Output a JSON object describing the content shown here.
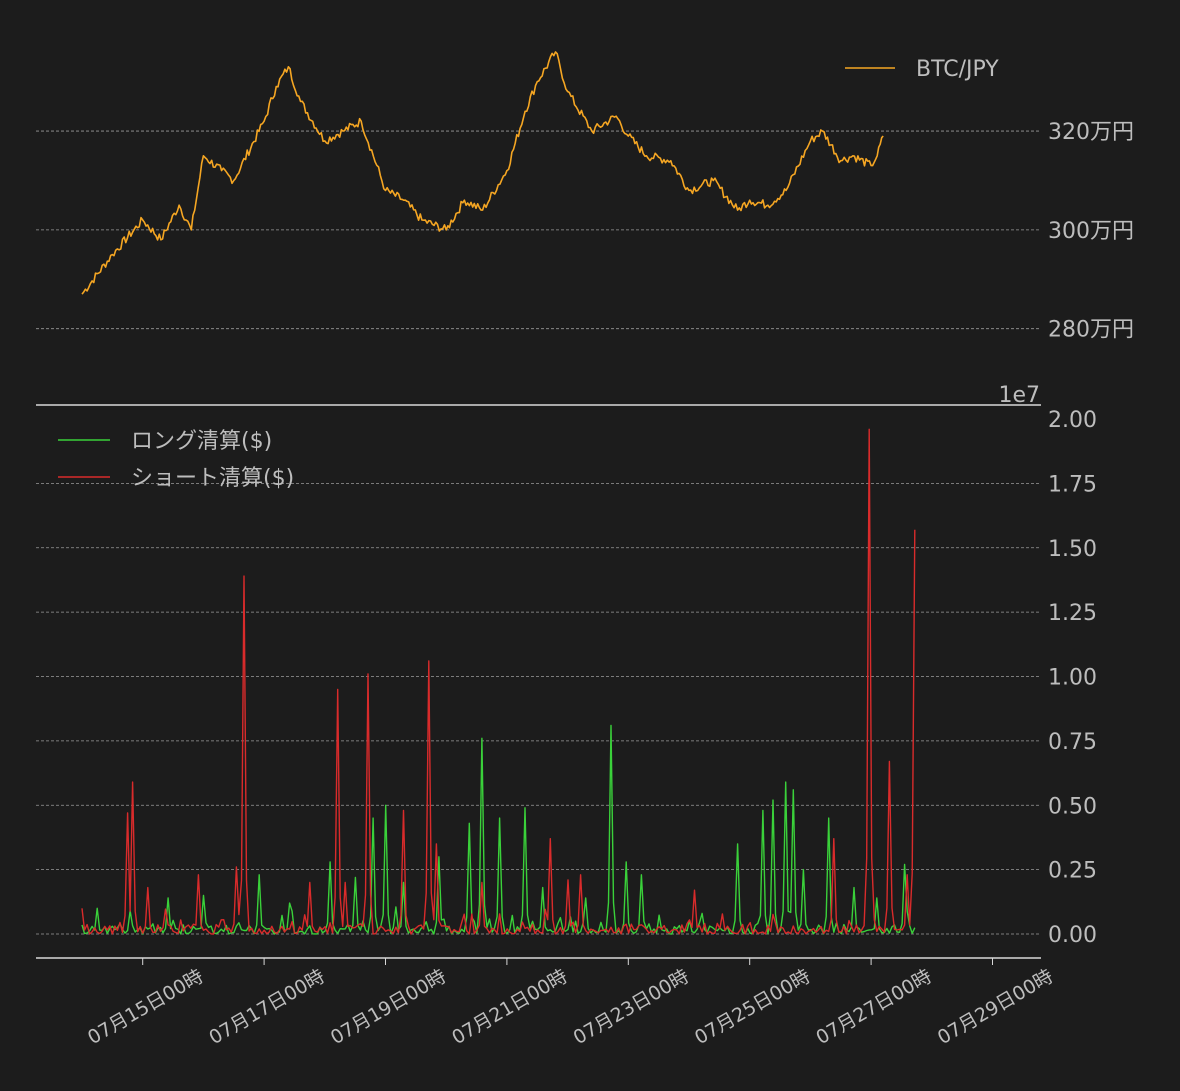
{
  "chart_data": [
    {
      "type": "line",
      "panel": "price",
      "legend_position": "top-right",
      "grid": true,
      "y_tick_labels": [
        "280万円",
        "300万円",
        "320万円"
      ],
      "y_ticks": [
        2800000,
        3000000,
        3200000
      ],
      "ylim": [
        2680000,
        3360000
      ],
      "x_range_days": [
        0,
        14
      ],
      "series": [
        {
          "name": "BTC/JPY",
          "color": "#f5a623",
          "x_days": [
            0.0,
            0.5,
            1.0,
            1.3,
            1.6,
            1.8,
            2.0,
            2.3,
            2.5,
            3.0,
            3.2,
            3.4,
            3.6,
            4.0,
            4.3,
            4.6,
            5.0,
            5.3,
            5.6,
            6.0,
            6.3,
            6.6,
            7.0,
            7.3,
            7.5,
            7.8,
            8.0,
            8.4,
            8.8,
            9.0,
            9.3,
            9.7,
            10.0,
            10.4,
            10.8,
            11.0,
            11.3,
            11.6,
            12.0,
            12.2,
            12.5,
            12.7,
            13.0,
            13.1,
            13.2
          ],
          "values": [
            2870000,
            2950000,
            3020000,
            2980000,
            3050000,
            3000000,
            3150000,
            3120000,
            3100000,
            3220000,
            3290000,
            3330000,
            3260000,
            3180000,
            3200000,
            3220000,
            3080000,
            3060000,
            3020000,
            3000000,
            3060000,
            3040000,
            3120000,
            3240000,
            3300000,
            3360000,
            3280000,
            3200000,
            3230000,
            3190000,
            3150000,
            3140000,
            3080000,
            3100000,
            3040000,
            3060000,
            3050000,
            3080000,
            3180000,
            3200000,
            3140000,
            3150000,
            3130000,
            3150000,
            3190000
          ]
        }
      ]
    },
    {
      "type": "line",
      "panel": "liquidations",
      "legend_position": "top-left",
      "grid": true,
      "offset_text": "1e7",
      "y_tick_labels": [
        "0.00",
        "0.25",
        "0.50",
        "0.75",
        "1.00",
        "1.25",
        "1.50",
        "1.75",
        "2.00"
      ],
      "y_ticks": [
        0,
        0.25,
        0.5,
        0.75,
        1.0,
        1.25,
        1.5,
        1.75,
        2.0
      ],
      "ylim": [
        -0.09,
        2.0
      ],
      "x_tick_labels": [
        "07月15日00時",
        "07月17日00時",
        "07月19日00時",
        "07月21日00時",
        "07月23日00時",
        "07月25日00時",
        "07月27日00時",
        "07月29日00時"
      ],
      "x_range_days": [
        0,
        14
      ],
      "series": [
        {
          "name": "ロング清算($)",
          "color": "#3ad13a",
          "spikes": [
            [
              0.25,
              0.1
            ],
            [
              0.8,
              0.09
            ],
            [
              1.4,
              0.14
            ],
            [
              2.0,
              0.15
            ],
            [
              2.9,
              0.23
            ],
            [
              3.4,
              0.12
            ],
            [
              4.1,
              0.28
            ],
            [
              4.5,
              0.22
            ],
            [
              4.8,
              0.45
            ],
            [
              5.0,
              0.5
            ],
            [
              5.3,
              0.2
            ],
            [
              5.9,
              0.3
            ],
            [
              6.4,
              0.43
            ],
            [
              6.6,
              0.76
            ],
            [
              6.9,
              0.45
            ],
            [
              7.3,
              0.49
            ],
            [
              7.6,
              0.18
            ],
            [
              8.3,
              0.14
            ],
            [
              8.7,
              0.81
            ],
            [
              8.95,
              0.28
            ],
            [
              9.2,
              0.23
            ],
            [
              10.2,
              0.08
            ],
            [
              10.8,
              0.35
            ],
            [
              11.2,
              0.48
            ],
            [
              11.4,
              0.52
            ],
            [
              11.6,
              0.59
            ],
            [
              11.7,
              0.56
            ],
            [
              11.9,
              0.25
            ],
            [
              12.3,
              0.45
            ],
            [
              12.7,
              0.18
            ],
            [
              13.1,
              0.14
            ],
            [
              13.55,
              0.27
            ]
          ]
        },
        {
          "name": "ショート清算($)",
          "color": "#d92b2b",
          "spikes": [
            [
              0.0,
              0.1
            ],
            [
              0.75,
              0.47
            ],
            [
              0.85,
              0.59
            ],
            [
              1.1,
              0.18
            ],
            [
              1.9,
              0.23
            ],
            [
              2.55,
              0.26
            ],
            [
              2.65,
              1.39
            ],
            [
              3.75,
              0.2
            ],
            [
              4.2,
              0.95
            ],
            [
              4.35,
              0.2
            ],
            [
              4.7,
              1.01
            ],
            [
              5.3,
              0.48
            ],
            [
              5.7,
              1.06
            ],
            [
              5.85,
              0.35
            ],
            [
              6.6,
              0.2
            ],
            [
              7.7,
              0.37
            ],
            [
              8.0,
              0.21
            ],
            [
              8.2,
              0.23
            ],
            [
              10.1,
              0.17
            ],
            [
              12.4,
              0.37
            ],
            [
              12.95,
              1.96
            ],
            [
              13.3,
              0.67
            ],
            [
              13.6,
              0.23
            ],
            [
              13.7,
              1.57
            ]
          ]
        }
      ]
    }
  ]
}
